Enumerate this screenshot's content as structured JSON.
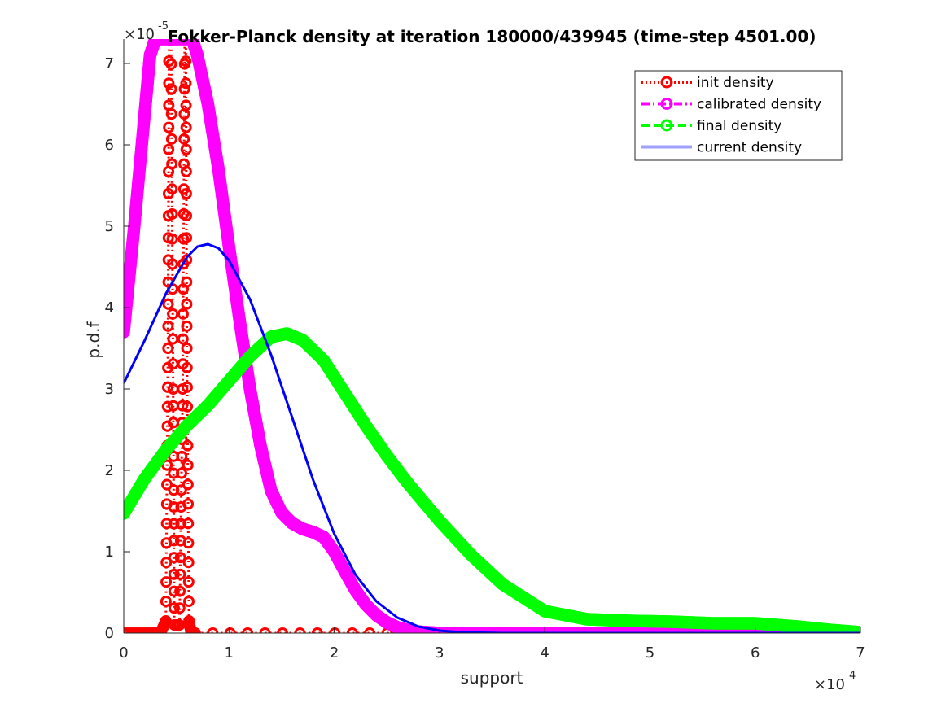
{
  "chart_data": {
    "type": "line",
    "title": "Fokker-Planck density at iteration 180000/439945 (time-step 4501.00)",
    "xlabel": "support",
    "ylabel": "p.d.f",
    "x_exponent_label": "×10",
    "x_exponent_power": "4",
    "y_exponent_label": "×10",
    "y_exponent_power": "-5",
    "xlim": [
      0,
      70000
    ],
    "ylim": [
      0,
      7.3e-05
    ],
    "x_ticks": [
      0,
      10000,
      20000,
      30000,
      40000,
      50000,
      60000,
      70000
    ],
    "x_tick_labels": [
      "0",
      "1",
      "2",
      "3",
      "4",
      "5",
      "6",
      "7"
    ],
    "y_ticks": [
      0,
      1e-05,
      2e-05,
      3e-05,
      4e-05,
      5e-05,
      6e-05,
      7e-05
    ],
    "y_tick_labels": [
      "0",
      "1",
      "2",
      "3",
      "4",
      "5",
      "6",
      "7"
    ],
    "grid": false,
    "legend_position": "top-right",
    "series": [
      {
        "name": "init density",
        "color": "#ff0000",
        "style": "dotted-circles",
        "x": [
          0,
          3500,
          4000,
          4200,
          4300,
          4500,
          4700,
          4800,
          5300,
          5600,
          5800,
          5900,
          6000,
          6200,
          6400,
          6800,
          30000,
          70000
        ],
        "y": [
          0,
          0,
          1.5e-06,
          3.5e-05,
          7.3e-05,
          7.3e-05,
          3e-05,
          1e-06,
          1e-06,
          3e-05,
          7.3e-05,
          7.3e-05,
          3.5e-05,
          1.5e-06,
          0,
          0,
          0,
          0
        ]
      },
      {
        "name": "calibrated density",
        "color": "#ff00ff",
        "style": "dashdot-circles",
        "x": [
          0,
          1000,
          2000,
          2500,
          3000,
          6500,
          7000,
          8000,
          9000,
          10000,
          11000,
          12000,
          13000,
          14000,
          15000,
          16000,
          17000,
          18000,
          19000,
          20000,
          21000,
          22000,
          23000,
          24000,
          25000,
          26000,
          27000,
          28000,
          30000,
          35000,
          40000,
          50000,
          60000,
          70000
        ],
        "y": [
          3.7e-05,
          5e-05,
          6.4e-05,
          7.1e-05,
          7.3e-05,
          7.3e-05,
          7.1e-05,
          6.5e-05,
          5.7e-05,
          4.75e-05,
          3.85e-05,
          3e-05,
          2.3e-05,
          1.75e-05,
          1.48e-05,
          1.35e-05,
          1.28e-05,
          1.24e-05,
          1.18e-05,
          1e-05,
          7.6e-06,
          5.3e-06,
          3.5e-06,
          2.2e-06,
          1.3e-06,
          7e-07,
          3.5e-07,
          1.6e-07,
          0,
          0,
          0,
          0,
          0,
          0
        ]
      },
      {
        "name": "final density",
        "color": "#00ff00",
        "style": "dashed-circles",
        "x": [
          0,
          2000,
          4000,
          6000,
          8000,
          10000,
          12000,
          14000,
          15500,
          17000,
          19000,
          21000,
          23000,
          25000,
          27000,
          30000,
          33000,
          36000,
          40000,
          44000,
          48000,
          52000,
          56000,
          60000,
          64000,
          67000,
          70000
        ],
        "y": [
          1.47e-05,
          1.9e-05,
          2.25e-05,
          2.55e-05,
          2.8e-05,
          3.1e-05,
          3.4e-05,
          3.64e-05,
          3.68e-05,
          3.6e-05,
          3.35e-05,
          2.95e-05,
          2.55e-05,
          2.18e-05,
          1.84e-05,
          1.38e-05,
          9.6e-06,
          6e-06,
          2.7e-06,
          1.7e-06,
          1.5e-06,
          1.4e-06,
          1.2e-06,
          1.2e-06,
          8e-07,
          4e-07,
          1e-07
        ]
      },
      {
        "name": "current density",
        "color": "#0000ff",
        "legend_color": "#a0a0ff",
        "legend_text_color": "#a0a0a0",
        "style": "solid",
        "x": [
          0,
          2000,
          4000,
          6000,
          7000,
          8000,
          9000,
          10000,
          12000,
          14000,
          16000,
          18000,
          20000,
          22000,
          24000,
          26000,
          28000,
          30000,
          32000,
          36000,
          40000,
          50000,
          60000,
          70000
        ],
        "y": [
          3.07e-05,
          3.6e-05,
          4.17e-05,
          4.62e-05,
          4.75e-05,
          4.78e-05,
          4.73e-05,
          4.58e-05,
          4.1e-05,
          3.42e-05,
          2.65e-05,
          1.88e-05,
          1.22e-05,
          7.2e-06,
          3.9e-06,
          1.9e-06,
          8e-07,
          3e-07,
          1e-07,
          0,
          0,
          0,
          0,
          0
        ]
      }
    ]
  }
}
